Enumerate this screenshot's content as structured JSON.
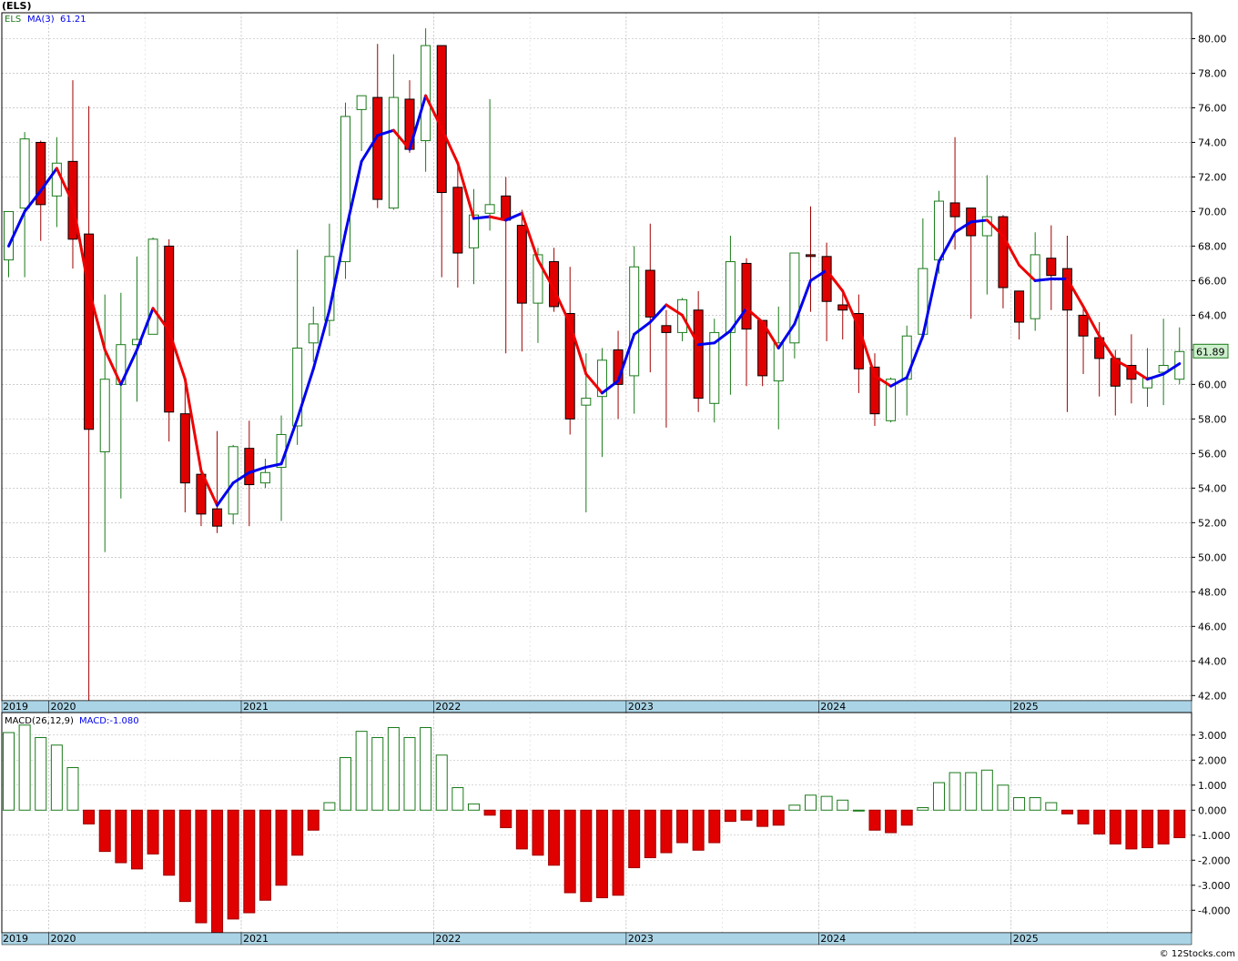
{
  "symbol": "(ELS)",
  "credit": "© 12Stocks.com",
  "colors": {
    "up": "#1a7a1a",
    "down": "#e00000",
    "ma_up": "#0000ee",
    "ma_down": "#ee0000",
    "axis_band": "#aad4e6",
    "grid": "#b0b0b0",
    "last_price_bg": "#ccf0cc"
  },
  "chart_data": [
    {
      "type": "candlestick",
      "interval": "monthly",
      "title": "",
      "legend": {
        "symbol": "ELS",
        "ma_label": "MA(3)",
        "ma_value": "61.21"
      },
      "last_price": "61.89",
      "y_ticks": [
        "42.00",
        "44.00",
        "46.00",
        "48.00",
        "50.00",
        "52.00",
        "54.00",
        "56.00",
        "58.00",
        "60.00",
        "62.00",
        "64.00",
        "66.00",
        "68.00",
        "70.00",
        "72.00",
        "74.00",
        "76.00",
        "78.00",
        "80.00"
      ],
      "ylim": [
        41.7,
        81.5
      ],
      "x_labels": [
        {
          "label": "2019",
          "index": -1.75
        },
        {
          "label": "2020",
          "index": 2.5
        },
        {
          "label": "2021",
          "index": 14.5
        },
        {
          "label": "2022",
          "index": 26.5
        },
        {
          "label": "2023",
          "index": 38.5
        },
        {
          "label": "2024",
          "index": 50.5
        },
        {
          "label": "2025",
          "index": 62.5
        }
      ],
      "ohlc": [
        [
          67.2,
          70.0,
          66.2,
          70.0
        ],
        [
          70.2,
          74.6,
          66.2,
          74.2
        ],
        [
          74.0,
          74.1,
          68.3,
          70.4
        ],
        [
          70.9,
          74.3,
          69.1,
          72.8
        ],
        [
          72.9,
          77.6,
          66.7,
          68.4
        ],
        [
          68.7,
          76.1,
          41.7,
          57.4
        ],
        [
          56.1,
          65.2,
          50.3,
          60.3
        ],
        [
          60.0,
          65.3,
          53.4,
          62.3
        ],
        [
          62.3,
          67.4,
          59.0,
          62.6
        ],
        [
          62.9,
          68.5,
          62.9,
          68.4
        ],
        [
          68.0,
          68.4,
          56.7,
          58.4
        ],
        [
          58.3,
          60.3,
          52.6,
          54.3
        ],
        [
          54.8,
          54.9,
          51.8,
          52.5
        ],
        [
          52.8,
          57.3,
          51.4,
          51.8
        ],
        [
          52.5,
          56.5,
          51.9,
          56.4
        ],
        [
          56.3,
          57.9,
          51.8,
          54.2
        ],
        [
          54.3,
          55.7,
          54.0,
          54.9
        ],
        [
          55.2,
          58.2,
          52.1,
          57.1
        ],
        [
          57.6,
          67.8,
          56.5,
          62.1
        ],
        [
          62.4,
          64.5,
          61.3,
          63.5
        ],
        [
          63.7,
          69.3,
          62.8,
          67.4
        ],
        [
          67.1,
          76.3,
          66.1,
          75.5
        ],
        [
          75.9,
          76.5,
          73.5,
          76.7
        ],
        [
          76.6,
          79.7,
          70.2,
          70.7
        ],
        [
          70.2,
          79.1,
          70.1,
          76.6
        ],
        [
          76.5,
          77.6,
          73.4,
          73.6
        ],
        [
          74.1,
          80.6,
          72.3,
          79.6
        ],
        [
          79.6,
          79.6,
          66.2,
          71.1
        ],
        [
          71.4,
          72.8,
          65.6,
          67.6
        ],
        [
          67.9,
          71.3,
          65.8,
          69.8
        ],
        [
          69.9,
          76.5,
          68.9,
          70.4
        ],
        [
          70.9,
          72.0,
          61.8,
          69.5
        ],
        [
          69.2,
          70.1,
          61.9,
          64.7
        ],
        [
          64.7,
          67.9,
          62.4,
          67.5
        ],
        [
          67.1,
          67.9,
          64.2,
          64.5
        ],
        [
          64.1,
          66.8,
          57.1,
          58.0
        ],
        [
          58.8,
          61.8,
          52.6,
          59.2
        ],
        [
          59.3,
          62.1,
          55.8,
          61.4
        ],
        [
          62.0,
          63.1,
          58.0,
          60.0
        ],
        [
          60.5,
          68.0,
          58.3,
          66.8
        ],
        [
          66.6,
          69.3,
          60.7,
          63.9
        ],
        [
          63.4,
          64.3,
          57.5,
          63.0
        ],
        [
          63.0,
          65.0,
          62.5,
          64.9
        ],
        [
          64.3,
          65.4,
          58.4,
          59.2
        ],
        [
          58.9,
          63.8,
          57.8,
          63.0
        ],
        [
          63.0,
          68.6,
          59.4,
          67.1
        ],
        [
          67.0,
          67.3,
          59.9,
          63.2
        ],
        [
          63.7,
          63.6,
          59.9,
          60.5
        ],
        [
          60.2,
          64.5,
          57.4,
          62.4
        ],
        [
          62.4,
          67.6,
          61.5,
          67.6
        ],
        [
          67.5,
          70.3,
          64.2,
          67.4
        ],
        [
          67.4,
          68.2,
          62.5,
          64.8
        ],
        [
          64.6,
          65.4,
          62.6,
          64.3
        ],
        [
          64.1,
          65.2,
          59.5,
          60.9
        ],
        [
          61.0,
          61.8,
          57.6,
          58.3
        ],
        [
          57.9,
          60.4,
          57.8,
          60.3
        ],
        [
          60.3,
          63.4,
          58.2,
          62.8
        ],
        [
          62.9,
          69.6,
          62.6,
          66.7
        ],
        [
          67.2,
          71.2,
          66.4,
          70.6
        ],
        [
          70.5,
          74.3,
          67.8,
          69.7
        ],
        [
          70.2,
          70.2,
          63.8,
          68.6
        ],
        [
          68.6,
          72.1,
          65.2,
          69.7
        ],
        [
          69.7,
          69.8,
          64.4,
          65.6
        ],
        [
          65.4,
          65.4,
          62.6,
          63.6
        ],
        [
          63.8,
          68.8,
          63.1,
          67.5
        ],
        [
          67.3,
          69.2,
          64.3,
          66.3
        ],
        [
          66.7,
          68.6,
          58.4,
          64.3
        ],
        [
          64.0,
          64.6,
          60.6,
          62.8
        ],
        [
          62.7,
          63.6,
          59.3,
          61.5
        ],
        [
          61.5,
          62.0,
          58.2,
          59.9
        ],
        [
          61.1,
          62.9,
          58.9,
          60.3
        ],
        [
          59.8,
          62.1,
          58.7,
          60.4
        ],
        [
          60.7,
          63.8,
          58.8,
          61.1
        ],
        [
          60.3,
          63.3,
          60.0,
          61.9
        ]
      ],
      "ma3": [
        68.0,
        70.0,
        71.2,
        72.5,
        70.5,
        65.5,
        62.0,
        60.0,
        62.0,
        64.4,
        63.1,
        60.3,
        55.0,
        53.0,
        54.3,
        54.9,
        55.2,
        55.4,
        58.0,
        60.9,
        64.3,
        68.8,
        72.9,
        74.4,
        74.7,
        73.6,
        76.7,
        74.8,
        72.8,
        69.6,
        69.7,
        69.5,
        69.9,
        67.2,
        65.5,
        63.5,
        60.6,
        59.5,
        60.2,
        62.9,
        63.6,
        64.6,
        64.0,
        62.3,
        62.4,
        63.1,
        64.4,
        63.6,
        62.1,
        63.5,
        66.0,
        66.6,
        65.4,
        63.3,
        60.5,
        59.9,
        60.4,
        62.8,
        67.1,
        68.8,
        69.4,
        69.5,
        68.6,
        66.9,
        66.0,
        66.1,
        66.1,
        64.5,
        62.8,
        61.4,
        60.9,
        60.3,
        60.6,
        61.2
      ],
      "macd": {
        "label": "MACD(26,12,9)",
        "value_label": "MACD:-1.080",
        "y_ticks": [
          "-4.000",
          "-3.000",
          "-2.000",
          "-1.000",
          "0.000",
          "1.000",
          "2.000",
          "3.000"
        ],
        "ylim": [
          -4.9,
          3.9
        ],
        "hist": [
          3.1,
          3.4,
          2.9,
          2.6,
          1.7,
          -0.55,
          -1.65,
          -2.1,
          -2.35,
          -1.75,
          -2.6,
          -3.65,
          -4.5,
          -4.9,
          -4.35,
          -4.1,
          -3.6,
          -3.0,
          -1.8,
          -0.8,
          0.3,
          2.1,
          3.15,
          2.9,
          3.3,
          2.9,
          3.3,
          2.2,
          0.9,
          0.25,
          -0.2,
          -0.7,
          -1.55,
          -1.8,
          -2.2,
          -3.3,
          -3.65,
          -3.5,
          -3.4,
          -2.3,
          -1.9,
          -1.7,
          -1.3,
          -1.6,
          -1.3,
          -0.45,
          -0.4,
          -0.65,
          -0.6,
          0.2,
          0.6,
          0.55,
          0.4,
          0.0,
          -0.8,
          -0.9,
          -0.6,
          0.1,
          1.1,
          1.5,
          1.5,
          1.6,
          1.0,
          0.5,
          0.5,
          0.3,
          -0.15,
          -0.55,
          -0.95,
          -1.35,
          -1.55,
          -1.5,
          -1.35,
          -1.1
        ]
      }
    }
  ]
}
